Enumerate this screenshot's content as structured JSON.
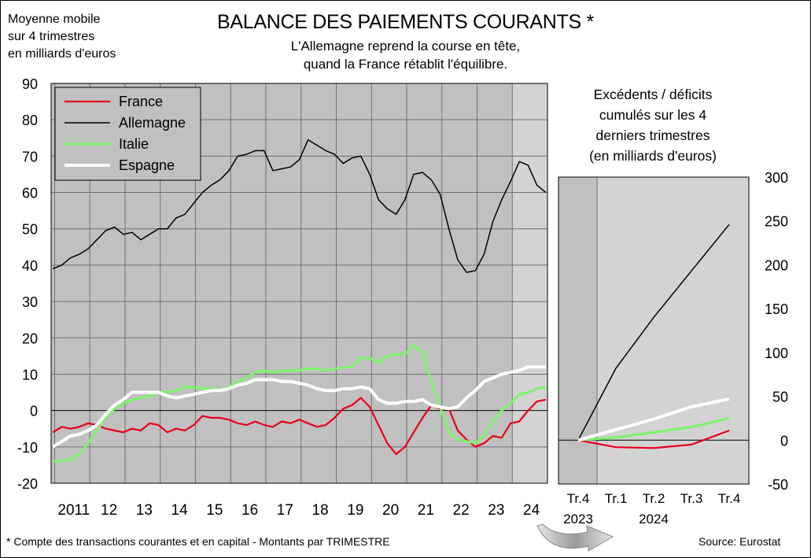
{
  "units_lines": [
    "Moyenne mobile",
    "sur 4 trimestres",
    "en milliards d'euros"
  ],
  "title": "BALANCE DES PAIEMENTS COURANTS *",
  "subtitle_lines": [
    "L'Allemagne reprend la course en tête,",
    "quand la France rétablit l'équilibre."
  ],
  "footnote": "* Compte des transactions courantes et en capital - Montants par TRIMESTRE",
  "source": "Source: Eurostat",
  "colors": {
    "France": "#e8001a",
    "Allemagne": "#000000",
    "Italie": "#7cf46a",
    "Espagne": "#ffffff",
    "plot_bg": "#c0c0c0",
    "shade_bg": "#d3d3d3"
  },
  "chart_data": [
    {
      "type": "line",
      "ylim": [
        -20,
        90
      ],
      "yticks": [
        -20,
        -10,
        0,
        10,
        20,
        30,
        40,
        50,
        60,
        70,
        80,
        90
      ],
      "xlim": [
        2010.9,
        2025.0
      ],
      "x_tick_labels": [
        "2011",
        "12",
        "13",
        "14",
        "15",
        "16",
        "17",
        "18",
        "19",
        "20",
        "21",
        "22",
        "23",
        "24"
      ],
      "x_tick_years": [
        2011,
        2012,
        2013,
        2014,
        2015,
        2016,
        2017,
        2018,
        2019,
        2020,
        2021,
        2022,
        2023,
        2024
      ],
      "shaded_from": 2024.0,
      "grid": true,
      "legend_position": "top-left",
      "series": [
        {
          "name": "France",
          "x": [
            2010.95,
            2011.2,
            2011.45,
            2011.7,
            2011.95,
            2012.2,
            2012.45,
            2012.7,
            2012.95,
            2013.2,
            2013.45,
            2013.7,
            2013.95,
            2014.2,
            2014.45,
            2014.7,
            2014.95,
            2015.2,
            2015.45,
            2015.7,
            2015.95,
            2016.2,
            2016.45,
            2016.7,
            2016.95,
            2017.2,
            2017.45,
            2017.7,
            2017.95,
            2018.2,
            2018.45,
            2018.7,
            2018.95,
            2019.2,
            2019.45,
            2019.7,
            2019.95,
            2020.2,
            2020.45,
            2020.7,
            2020.95,
            2021.2,
            2021.45,
            2021.7,
            2021.95,
            2022.2,
            2022.45,
            2022.7,
            2022.95,
            2023.2,
            2023.45,
            2023.7,
            2023.95,
            2024.2,
            2024.45,
            2024.7,
            2024.95
          ],
          "values": [
            -6,
            -4.5,
            -5,
            -4.5,
            -3.5,
            -4,
            -5,
            -5.5,
            -6,
            -5,
            -5.5,
            -3.5,
            -4,
            -6,
            -5,
            -5.5,
            -4,
            -1.5,
            -2,
            -2,
            -2.5,
            -3.5,
            -4,
            -3,
            -4,
            -4.5,
            -3,
            -3.5,
            -2.5,
            -3.5,
            -4.5,
            -4,
            -2,
            0.5,
            1.5,
            3.5,
            1,
            -4,
            -9,
            -12,
            -10,
            -6,
            -2,
            1.5,
            0.5,
            0.5,
            -5.5,
            -8,
            -10,
            -9,
            -7,
            -7.5,
            -3.5,
            -3,
            0,
            2.5,
            3
          ]
        },
        {
          "name": "Allemagne",
          "x": [
            2010.95,
            2011.2,
            2011.45,
            2011.7,
            2011.95,
            2012.2,
            2012.45,
            2012.7,
            2012.95,
            2013.2,
            2013.45,
            2013.7,
            2013.95,
            2014.2,
            2014.45,
            2014.7,
            2014.95,
            2015.2,
            2015.45,
            2015.7,
            2015.95,
            2016.2,
            2016.45,
            2016.7,
            2016.95,
            2017.2,
            2017.45,
            2017.7,
            2017.95,
            2018.2,
            2018.45,
            2018.7,
            2018.95,
            2019.2,
            2019.45,
            2019.7,
            2019.95,
            2020.2,
            2020.45,
            2020.7,
            2020.95,
            2021.2,
            2021.45,
            2021.7,
            2021.95,
            2022.2,
            2022.45,
            2022.7,
            2022.95,
            2023.2,
            2023.45,
            2023.7,
            2023.95,
            2024.2,
            2024.45,
            2024.7,
            2024.95
          ],
          "values": [
            39,
            40,
            42,
            43,
            44.5,
            47,
            49.5,
            50.5,
            48.5,
            49,
            47,
            48.5,
            50,
            50,
            53,
            54,
            57,
            60,
            62,
            63.5,
            66,
            70,
            70.5,
            71.5,
            71.5,
            66,
            66.5,
            67,
            69,
            74.5,
            73,
            71.5,
            70.5,
            68,
            69.5,
            70,
            65,
            58,
            55.5,
            54,
            58,
            65,
            65.5,
            63.5,
            59.5,
            50,
            41.5,
            38,
            38.5,
            43,
            52,
            58,
            63,
            68.5,
            67.5,
            62,
            60
          ]
        },
        {
          "name": "Italie",
          "x": [
            2010.95,
            2011.2,
            2011.45,
            2011.7,
            2011.95,
            2012.2,
            2012.45,
            2012.7,
            2012.95,
            2013.2,
            2013.45,
            2013.7,
            2013.95,
            2014.2,
            2014.45,
            2014.7,
            2014.95,
            2015.2,
            2015.45,
            2015.7,
            2015.95,
            2016.2,
            2016.45,
            2016.7,
            2016.95,
            2017.2,
            2017.45,
            2017.7,
            2017.95,
            2018.2,
            2018.45,
            2018.7,
            2018.95,
            2019.2,
            2019.45,
            2019.7,
            2019.95,
            2020.2,
            2020.45,
            2020.7,
            2020.95,
            2021.2,
            2021.45,
            2021.7,
            2021.95,
            2022.2,
            2022.45,
            2022.7,
            2022.95,
            2023.2,
            2023.45,
            2023.7,
            2023.95,
            2024.2,
            2024.45,
            2024.7,
            2024.95
          ],
          "values": [
            -14,
            -14,
            -13.5,
            -12,
            -9,
            -5.5,
            -2,
            0.5,
            2,
            3,
            3.5,
            4,
            5,
            5,
            5.5,
            6.5,
            6.5,
            6,
            6,
            5.5,
            6.5,
            8,
            9,
            10.5,
            11,
            10.5,
            11,
            11,
            11,
            11.5,
            11.5,
            11,
            11.5,
            12,
            12,
            14.5,
            14.5,
            13,
            15,
            15.5,
            15.5,
            18,
            16,
            8,
            1,
            -6,
            -8,
            -8.5,
            -9,
            -7,
            -3,
            0,
            2,
            4.5,
            5,
            6,
            6.5
          ]
        },
        {
          "name": "Espagne",
          "x": [
            2010.95,
            2011.2,
            2011.45,
            2011.7,
            2011.95,
            2012.2,
            2012.45,
            2012.7,
            2012.95,
            2013.2,
            2013.45,
            2013.7,
            2013.95,
            2014.2,
            2014.45,
            2014.7,
            2014.95,
            2015.2,
            2015.45,
            2015.7,
            2015.95,
            2016.2,
            2016.45,
            2016.7,
            2016.95,
            2017.2,
            2017.45,
            2017.7,
            2017.95,
            2018.2,
            2018.45,
            2018.7,
            2018.95,
            2019.2,
            2019.45,
            2019.7,
            2019.95,
            2020.2,
            2020.45,
            2020.7,
            2020.95,
            2021.2,
            2021.45,
            2021.7,
            2021.95,
            2022.2,
            2022.45,
            2022.7,
            2022.95,
            2023.2,
            2023.45,
            2023.7,
            2023.95,
            2024.2,
            2024.45,
            2024.7,
            2024.95
          ],
          "values": [
            -10,
            -8.5,
            -7,
            -6.5,
            -5.5,
            -4,
            -1,
            1.5,
            3,
            5,
            5,
            5,
            5,
            4,
            3.5,
            4,
            4.5,
            5,
            5.5,
            5.5,
            6,
            7,
            7.5,
            8.5,
            8.5,
            8.5,
            8,
            8,
            7.5,
            7,
            6,
            5.5,
            5.5,
            6,
            6,
            6.5,
            6,
            3,
            2,
            2,
            2.5,
            2.5,
            3,
            1.5,
            1,
            0.5,
            1,
            3.5,
            5.5,
            8,
            9,
            10,
            10.5,
            11,
            12,
            12,
            12
          ]
        }
      ]
    },
    {
      "type": "line",
      "title_lines": [
        "Excédents / déficits",
        "cumulés sur les 4",
        "derniers trimestres",
        "(en milliards d'euros)"
      ],
      "ylim": [
        -50,
        300
      ],
      "yticks": [
        -50,
        0,
        50,
        100,
        150,
        200,
        250,
        300
      ],
      "x_tick_labels": [
        "Tr.4",
        "Tr.1",
        "Tr.2",
        "Tr.3",
        "Tr.4"
      ],
      "x_year_labels": [
        "2023",
        "2024"
      ],
      "x": [
        0,
        1,
        2,
        3,
        4
      ],
      "series": [
        {
          "name": "France",
          "values": [
            0,
            -8,
            -9,
            -5,
            11
          ]
        },
        {
          "name": "Allemagne",
          "values": [
            0,
            82,
            140,
            193,
            246
          ]
        },
        {
          "name": "Italie",
          "values": [
            0,
            3,
            9,
            15,
            25
          ]
        },
        {
          "name": "Espagne",
          "values": [
            0,
            12,
            24,
            38,
            47
          ]
        }
      ]
    }
  ]
}
